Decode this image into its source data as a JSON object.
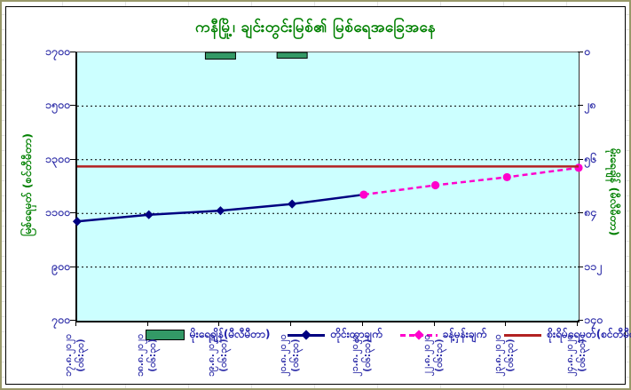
{
  "title": "ကနီမြို့၊ ချင်းတွင်းမြစ်၏ မြစ်ရေအခြေအနေ",
  "left_axis": {
    "title": "မြစ်ရေမှတ် (စင်တီမီတာ)",
    "tick_labels": [
      "၁၇၀၀",
      "၁၅၀၀",
      "၁၃၀၀",
      "၁၁၀၀",
      "၉၀၀",
      "၇၀၀"
    ],
    "min": 700,
    "max": 1700
  },
  "right_axis": {
    "title": "မိုးရေချိန် (မီလီမီတာ)",
    "tick_labels": [
      "၀",
      "၂၈",
      "၅၆",
      "၈၄",
      "၁၁၂",
      "၁၄၀"
    ],
    "min": 0,
    "max": 140,
    "inverted": true
  },
  "x_axis": {
    "date_labels": [
      "၁၇.၈.၂၀၂၀",
      "၁၈.၈.၂၀၂၀",
      "၁၉.၈.၂၀၂၀",
      "၂၀.၈.၂၀၂၀",
      "၂၁.၈.၂၀၂၀",
      "၂၂.၈.၂၀၂၀",
      "၂၃.၈.၂၀၂၀",
      "၂၄.၈.၂၀၂၀"
    ],
    "time_label": "(၀၆:၃၀)"
  },
  "legend": {
    "items": [
      {
        "label": "မိုးရေချိန်(မီလီမီတာ)",
        "type": "bar"
      },
      {
        "label": "တိုင်းထွာချက်",
        "type": "line-solid-diamond"
      },
      {
        "label": "ခန့်မှန်းချက်",
        "type": "line-dashed-diamond"
      },
      {
        "label": "စိုးရိမ်ရေမှတ်(စင်တီမီတာ)",
        "type": "line-solid"
      }
    ]
  },
  "colors": {
    "plot_background": "#ccffff",
    "title_green": "#008000",
    "axis_label_blue": "#3333aa",
    "observed_line": "#000080",
    "forecast_line": "#ff00cc",
    "danger_line": "#b22222",
    "rain_bar": "#339966",
    "gridline": "#000000"
  },
  "chart_data": {
    "type": "line",
    "title": "ကနီမြို့၊ ချင်းတွင်းမြစ်၏ မြစ်ရေအခြေအနေ",
    "categories": [
      "၁၇.၈.၂၀၂၀ (၀၆:၃၀)",
      "၁၈.၈.၂၀၂၀ (၀၆:၃၀)",
      "၁၉.၈.၂၀၂၀ (၀၆:၃၀)",
      "၂၀.၈.၂၀၂၀ (၀၆:၃၀)",
      "၂၁.၈.၂၀၂၀ (၀၆:၃၀)",
      "၂၂.၈.၂၀၂၀ (၀၆:၃၀)",
      "၂၃.၈.၂၀၂၀ (၀၆:၃၀)",
      "၂၄.၈.၂၀၂၀ (၀၆:၃၀)"
    ],
    "left_ylabel": "မြစ်ရေမှတ် (စင်တီမီတာ)",
    "right_ylabel": "မိုးရေချိန် (မီလီမီတာ)",
    "left_ylim": [
      700,
      1700
    ],
    "right_ylim": [
      0,
      140
    ],
    "grid": true,
    "legend_position": "bottom-inside",
    "series": [
      {
        "name": "တိုင်းထွာချက်",
        "type": "line",
        "axis": "left",
        "style": "solid",
        "marker": "diamond",
        "color": "#000080",
        "values": [
          1070,
          1095,
          1110,
          1135,
          1170,
          null,
          null,
          null
        ]
      },
      {
        "name": "ခန့်မှန်းချက်",
        "type": "line",
        "axis": "left",
        "style": "dashed",
        "marker": "circle",
        "color": "#ff00cc",
        "values": [
          null,
          null,
          null,
          null,
          1170,
          1205,
          1235,
          1270
        ]
      },
      {
        "name": "မိုးရေချိန်(မီလီမီတာ)",
        "type": "bar",
        "axis": "right",
        "color": "#339966",
        "values": [
          0,
          0,
          3.5,
          3,
          0,
          0,
          0,
          0
        ]
      },
      {
        "name": "စိုးရိမ်ရေမှတ်(စင်တီမီတာ)",
        "type": "hline",
        "axis": "left",
        "color": "#b22222",
        "value": 1275
      }
    ]
  }
}
